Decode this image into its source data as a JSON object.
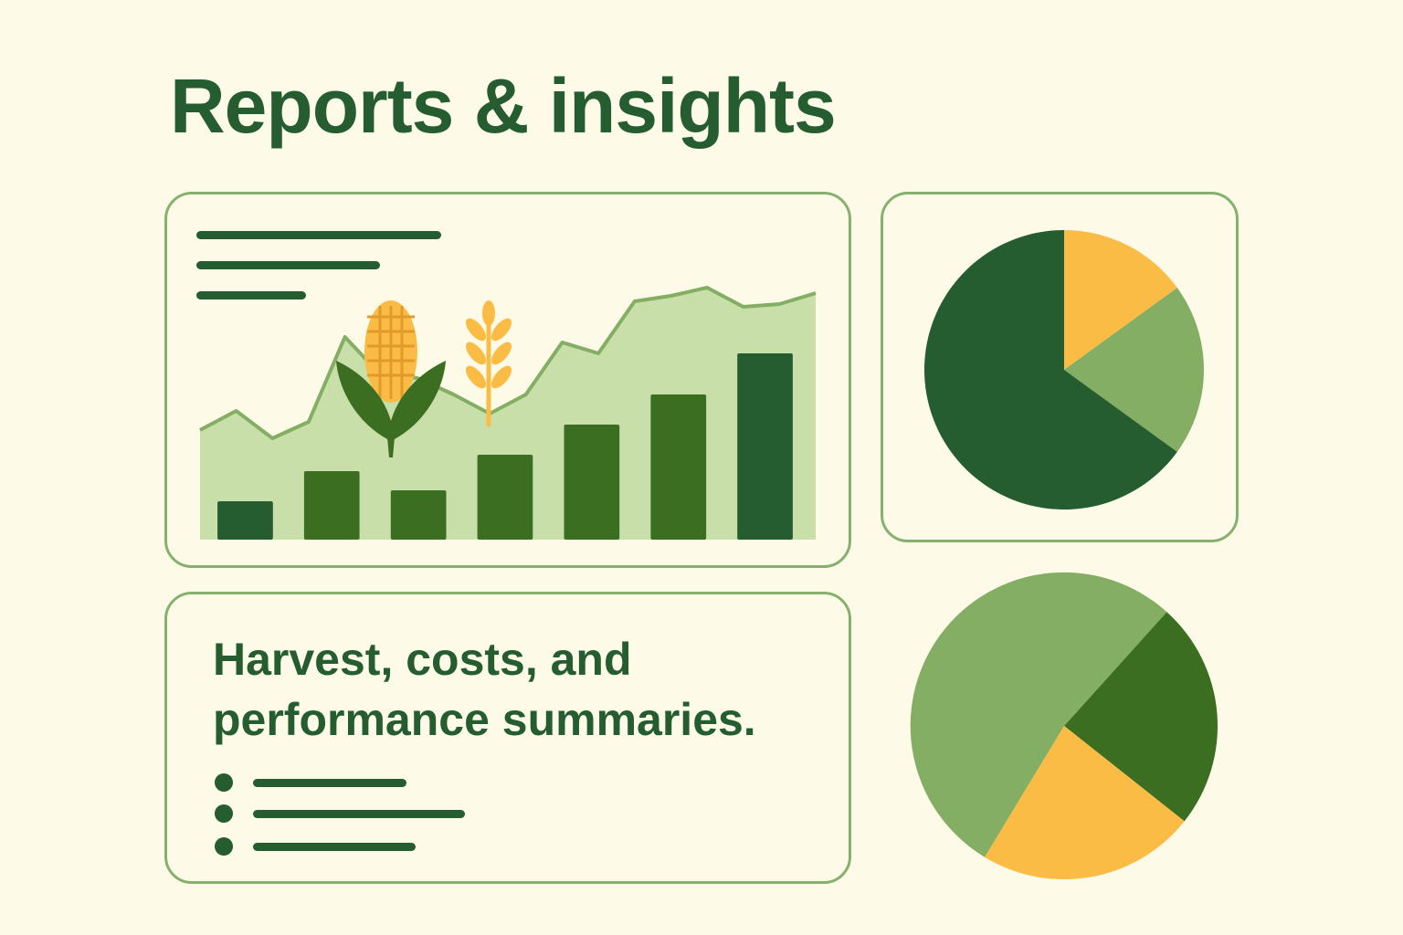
{
  "title": "Reports & insights",
  "summary": {
    "line1": "Harvest, costs, and",
    "line2": "performance summaries."
  },
  "colors": {
    "dark_green": "#255c30",
    "mid_green": "#3c6e22",
    "light_green": "#84ae64",
    "pale_green": "#c9dfaa",
    "yellow": "#fbbc45",
    "border": "#86b06e",
    "background": "#fdfbe8"
  },
  "icons": [
    "corn-icon",
    "wheat-icon"
  ],
  "chart_data": [
    {
      "type": "bar",
      "categories": [
        "",
        "",
        "",
        "",
        "",
        "",
        ""
      ],
      "values": [
        14,
        25,
        18,
        31,
        42,
        53,
        68
      ],
      "area_trend": [
        40,
        47,
        37,
        43,
        74,
        60,
        59,
        53,
        46,
        53,
        72,
        68,
        87,
        89,
        92,
        85,
        86,
        90
      ],
      "ylim": [
        0,
        100
      ]
    },
    {
      "type": "pie",
      "slices": [
        {
          "value": 15,
          "color": "#fbbc45"
        },
        {
          "value": 20,
          "color": "#84ae64"
        },
        {
          "value": 65,
          "color": "#255c30"
        }
      ]
    },
    {
      "type": "pie",
      "slices": [
        {
          "value": 24,
          "color": "#3c6e22"
        },
        {
          "value": 23,
          "color": "#fbbc45"
        },
        {
          "value": 53,
          "color": "#84ae64"
        }
      ]
    }
  ]
}
